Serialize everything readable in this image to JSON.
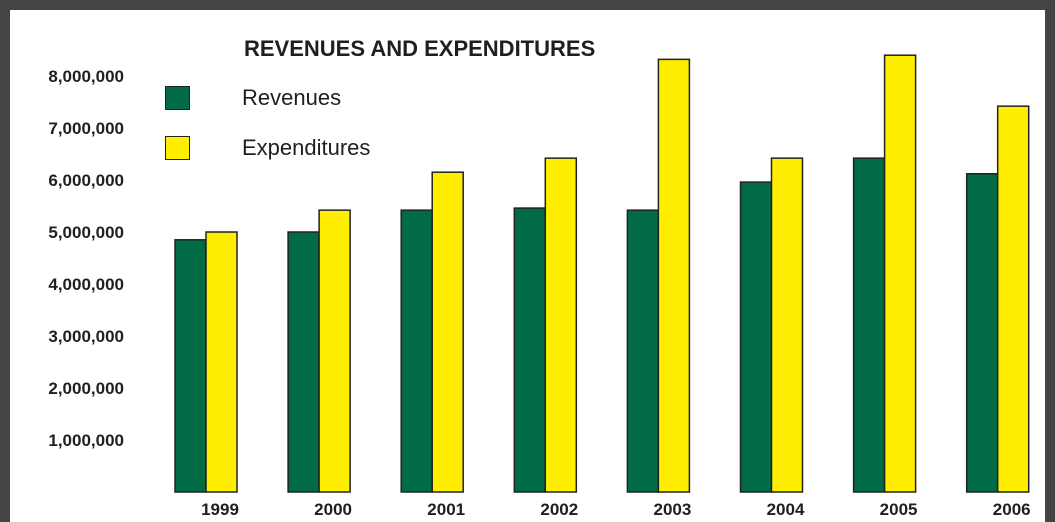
{
  "chart_data": {
    "type": "bar",
    "title": "REVENUES AND EXPENDITURES",
    "xlabel": "",
    "ylabel": "",
    "categories": [
      "1999",
      "2000",
      "2001",
      "2002",
      "2003",
      "2004",
      "2005",
      "2006"
    ],
    "series": [
      {
        "name": "Revenues",
        "color": "#006b44",
        "values": [
          4850000,
          5000000,
          5420000,
          5460000,
          5420000,
          5960000,
          6420000,
          6120000
        ]
      },
      {
        "name": "Expenditures",
        "color": "#ffee00",
        "values": [
          5000000,
          5420000,
          6150000,
          6420000,
          8320000,
          6420000,
          8400000,
          7420000
        ]
      }
    ],
    "ylim": [
      0,
      8800000
    ],
    "yticks": [
      1000000,
      2000000,
      3000000,
      4000000,
      5000000,
      6000000,
      7000000,
      8000000
    ],
    "ytick_labels": [
      "1,000,000",
      "2,000,000",
      "3,000,000",
      "4,000,000",
      "5,000,000",
      "6,000,000",
      "7,000,000",
      "8,000,000"
    ],
    "grid": false,
    "legend_position": "top-left"
  },
  "colors": {
    "frame": "#444444",
    "bar_outline": "#222222",
    "text": "#1f1f1f"
  }
}
